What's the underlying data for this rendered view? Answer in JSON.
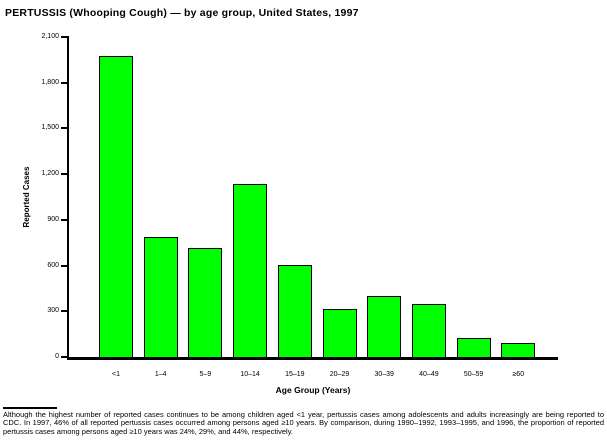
{
  "chart_data": {
    "type": "bar",
    "title": "PERTUSSIS (Whooping Cough) — by age group, United States, 1997",
    "categories": [
      "<1",
      "1–4",
      "5–9",
      "10–14",
      "15–19",
      "20–29",
      "30–39",
      "40–49",
      "50–59",
      "≥60"
    ],
    "values": [
      1975,
      785,
      715,
      1135,
      605,
      315,
      400,
      345,
      125,
      90
    ],
    "xlabel": "Age Group (Years)",
    "ylabel": "Reported Cases",
    "ylim": [
      0,
      2100
    ],
    "yticks": [
      0,
      300,
      600,
      900,
      1200,
      1500,
      1800,
      2100
    ],
    "ytick_labels": [
      "0",
      "300",
      "600",
      "900",
      "1,200",
      "1,500",
      "1,800",
      "2,100"
    ],
    "bar_color": "#00FF00",
    "bar_border_color": "#000000",
    "grid": false,
    "legend": false
  },
  "footnote": {
    "text": "Although the highest number of reported cases continues to be among children aged <1 year, pertussis cases among adolescents and adults increasingly are being reported to CDC. In 1997, 46% of all reported pertussis cases occurred among persons aged ≥10 years. By comparison, during 1990–1992, 1993–1995, and 1996, the proportion of reported pertussis cases among persons aged ≥10 years was 24%, 29%, and 44%, respectively."
  }
}
